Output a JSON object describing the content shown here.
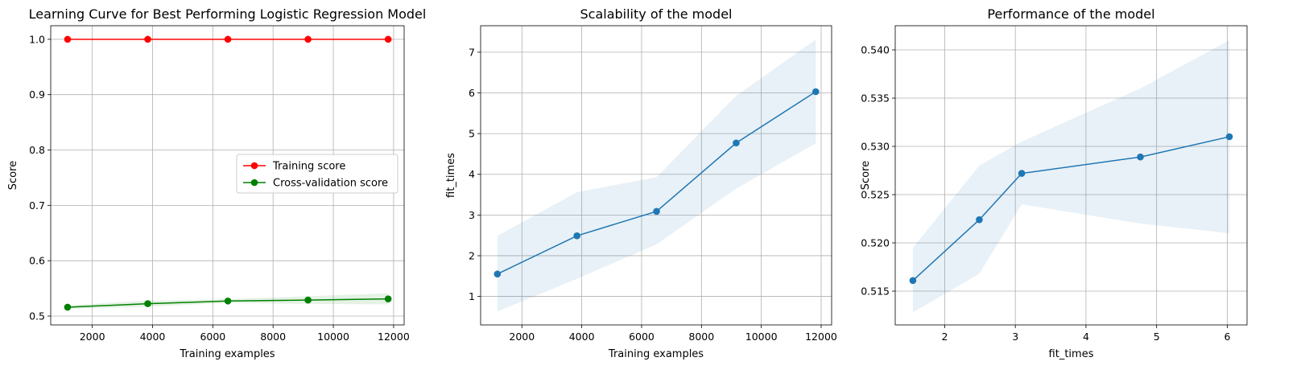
{
  "chart_data": [
    {
      "type": "line",
      "title": "Learning Curve for Best Performing Logistic Regression Model",
      "xlabel": "Training examples",
      "ylabel": "Score",
      "xlim": [
        620,
        12350
      ],
      "ylim": [
        0.484,
        1.0245
      ],
      "xticks": [
        2000,
        4000,
        6000,
        8000,
        10000,
        12000
      ],
      "yticks": [
        0.5,
        0.6,
        0.7,
        0.8,
        0.9,
        1.0
      ],
      "ytick_labels": [
        "0.5",
        "0.6",
        "0.7",
        "0.8",
        "0.9",
        "1.0"
      ],
      "grid": true,
      "legend_position": "center-right",
      "x": [
        1180,
        3840,
        6500,
        9160,
        11820
      ],
      "series": [
        {
          "name": "Training score",
          "color": "#ff0000",
          "values": [
            1.0,
            1.0,
            1.0,
            1.0,
            1.0
          ],
          "band_lower": [
            1.0,
            1.0,
            1.0,
            1.0,
            1.0
          ],
          "band_upper": [
            1.0,
            1.0,
            1.0,
            1.0,
            1.0
          ]
        },
        {
          "name": "Cross-validation score",
          "color": "#008000",
          "values": [
            0.516,
            0.5224,
            0.5272,
            0.5289,
            0.531
          ],
          "band_lower": [
            0.513,
            0.5168,
            0.524,
            0.522,
            0.521
          ],
          "band_upper": [
            0.5195,
            0.528,
            0.5305,
            0.536,
            0.541
          ]
        }
      ]
    },
    {
      "type": "line",
      "title": "Scalability of the model",
      "xlabel": "Training examples",
      "ylabel": "fit_times",
      "xlim": [
        620,
        12350
      ],
      "ylim": [
        0.3,
        7.65
      ],
      "xticks": [
        2000,
        4000,
        6000,
        8000,
        10000,
        12000
      ],
      "yticks": [
        1,
        2,
        3,
        4,
        5,
        6,
        7
      ],
      "ytick_labels": [
        "1",
        "2",
        "3",
        "4",
        "5",
        "6",
        "7"
      ],
      "grid": true,
      "x": [
        1180,
        3840,
        6500,
        9160,
        11820
      ],
      "series": [
        {
          "color": "#1f77b4",
          "values": [
            1.55,
            2.49,
            3.09,
            4.77,
            6.03
          ],
          "band_lower": [
            0.63,
            1.43,
            2.28,
            3.65,
            4.76
          ],
          "band_upper": [
            2.49,
            3.56,
            3.93,
            5.93,
            7.31
          ]
        }
      ]
    },
    {
      "type": "line",
      "title": "Performance of the model",
      "xlabel": "fit_times",
      "ylabel": "Score",
      "xlim": [
        1.3,
        6.28
      ],
      "ylim": [
        0.5115,
        0.5425
      ],
      "xticks": [
        2,
        3,
        4,
        5,
        6
      ],
      "yticks": [
        0.515,
        0.52,
        0.525,
        0.53,
        0.535,
        0.54
      ],
      "ytick_labels": [
        "0.515",
        "0.520",
        "0.525",
        "0.530",
        "0.535",
        "0.540"
      ],
      "grid": true,
      "x": [
        1.55,
        2.49,
        3.09,
        4.77,
        6.03
      ],
      "series": [
        {
          "color": "#1f77b4",
          "values": [
            0.5161,
            0.5224,
            0.5272,
            0.5289,
            0.531
          ],
          "band_lower": [
            0.5128,
            0.5168,
            0.524,
            0.522,
            0.521
          ],
          "band_upper": [
            0.5195,
            0.528,
            0.5305,
            0.536,
            0.541
          ]
        }
      ]
    }
  ]
}
